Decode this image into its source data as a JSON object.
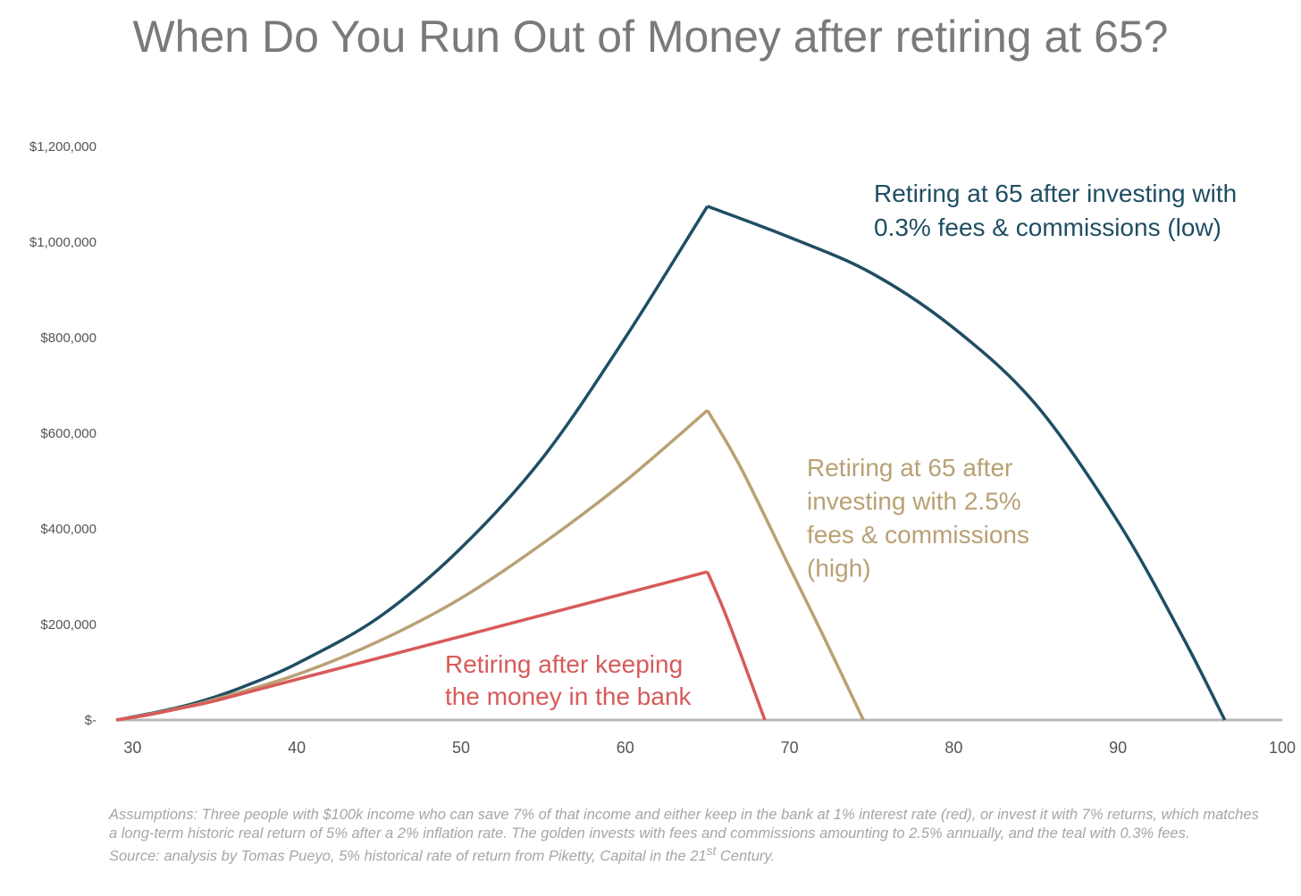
{
  "title": "When Do You Run Out of Money after retiring at 65?",
  "chart_data": {
    "type": "line",
    "xlim": [
      29,
      100
    ],
    "ylim": [
      0,
      1200000
    ],
    "y_ticks": [
      {
        "value": 1200000,
        "label": "$1,200,000"
      },
      {
        "value": 1000000,
        "label": "$1,000,000"
      },
      {
        "value": 800000,
        "label": "$800,000"
      },
      {
        "value": 600000,
        "label": "$600,000"
      },
      {
        "value": 400000,
        "label": "$400,000"
      },
      {
        "value": 200000,
        "label": "$200,000"
      },
      {
        "value": 0,
        "label": "$-"
      }
    ],
    "x_ticks": [
      {
        "value": 30,
        "label": "30"
      },
      {
        "value": 40,
        "label": "40"
      },
      {
        "value": 50,
        "label": "50"
      },
      {
        "value": 60,
        "label": "60"
      },
      {
        "value": 70,
        "label": "70"
      },
      {
        "value": 80,
        "label": "80"
      },
      {
        "value": 90,
        "label": "90"
      },
      {
        "value": 100,
        "label": "100"
      }
    ],
    "grid": false,
    "legend": "inline labels",
    "series": [
      {
        "key": "low_fees",
        "label_lines": [
          "Retiring at 65 after investing with",
          "0.3% fees & commissions (low)"
        ],
        "color": "#1f4e63",
        "points": [
          [
            29,
            0
          ],
          [
            31,
            13000
          ],
          [
            33,
            28000
          ],
          [
            35,
            48000
          ],
          [
            37,
            73000
          ],
          [
            40,
            118000
          ],
          [
            45,
            215000
          ],
          [
            50,
            360000
          ],
          [
            55,
            550000
          ],
          [
            60,
            800000
          ],
          [
            65,
            1075000
          ],
          [
            70,
            1010000
          ],
          [
            75,
            935000
          ],
          [
            80,
            820000
          ],
          [
            85,
            660000
          ],
          [
            90,
            415000
          ],
          [
            94,
            170000
          ],
          [
            96.5,
            0
          ]
        ]
      },
      {
        "key": "high_fees",
        "label_lines": [
          "Retiring at 65 after",
          "investing with 2.5%",
          "fees & commissions",
          "(high)"
        ],
        "color": "#b9a174",
        "points": [
          [
            29,
            0
          ],
          [
            31,
            12000
          ],
          [
            33,
            26000
          ],
          [
            35,
            43000
          ],
          [
            40,
            95000
          ],
          [
            45,
            165000
          ],
          [
            50,
            255000
          ],
          [
            55,
            370000
          ],
          [
            60,
            500000
          ],
          [
            65,
            648000
          ],
          [
            67,
            530000
          ],
          [
            70,
            320000
          ],
          [
            72,
            180000
          ],
          [
            74.5,
            0
          ]
        ]
      },
      {
        "key": "bank",
        "label_lines": [
          "Retiring after keeping",
          "the money in the bank"
        ],
        "color": "#d85a5a",
        "points": [
          [
            29,
            0
          ],
          [
            31,
            11000
          ],
          [
            33,
            25000
          ],
          [
            35,
            40000
          ],
          [
            40,
            85000
          ],
          [
            45,
            130000
          ],
          [
            50,
            175000
          ],
          [
            55,
            220000
          ],
          [
            60,
            265000
          ],
          [
            65,
            310000
          ],
          [
            66,
            230000
          ],
          [
            67,
            140000
          ],
          [
            68.5,
            0
          ]
        ]
      }
    ]
  },
  "footnote": {
    "assumptions": "Assumptions: Three people with $100k income who can save 7% of that income and  either keep in the bank at 1% interest rate (red), or invest it with 7% returns, which matches a long-term historic real return of 5% after a 2% inflation rate. The golden invests with fees and commissions amounting to 2.5% annually, and the teal with 0.3% fees.",
    "source_prefix": "Source: analysis by Tomas Pueyo, 5% historical rate of return from Piketty, Capital in the 21",
    "source_sup": "st",
    "source_suffix": " Century."
  }
}
